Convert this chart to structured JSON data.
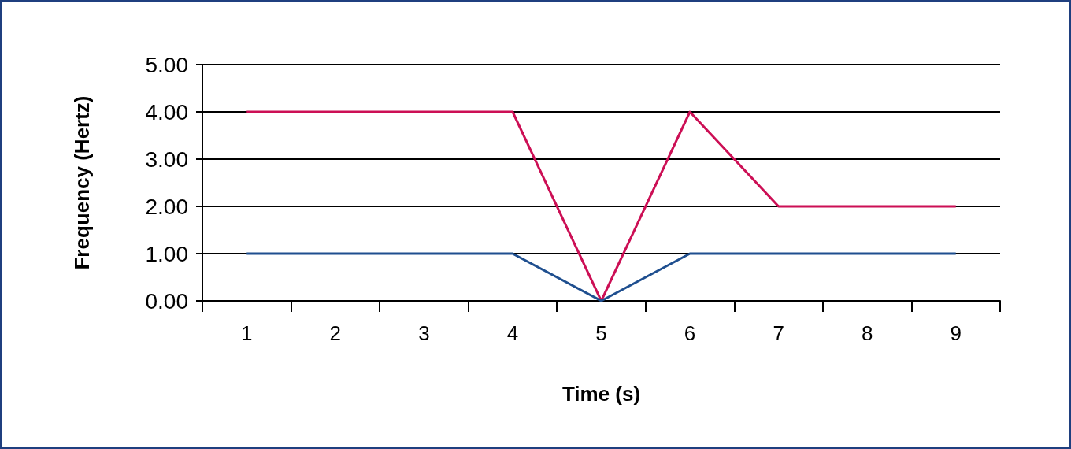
{
  "chart_data": {
    "type": "line",
    "xlabel": "Time (s)",
    "ylabel": "Frequency (Hertz)",
    "categories": [
      "1",
      "2",
      "3",
      "4",
      "5",
      "6",
      "7",
      "8",
      "9"
    ],
    "series": [
      {
        "color": "#cc0f55",
        "values": [
          4,
          4,
          4,
          4,
          0,
          4,
          2,
          2,
          2
        ]
      },
      {
        "color": "#1f4f8f",
        "values": [
          1,
          1,
          1,
          1,
          0,
          1,
          1,
          1,
          1
        ]
      }
    ],
    "ylim": [
      0,
      5
    ],
    "yticks": [
      {
        "value": 0,
        "label": "0.00"
      },
      {
        "value": 1,
        "label": "1.00"
      },
      {
        "value": 2,
        "label": "2.00"
      },
      {
        "value": 3,
        "label": "3.00"
      },
      {
        "value": 4,
        "label": "4.00"
      },
      {
        "value": 5,
        "label": "5.00"
      }
    ],
    "grid": "y",
    "marker": "none",
    "line_style": "solid"
  }
}
